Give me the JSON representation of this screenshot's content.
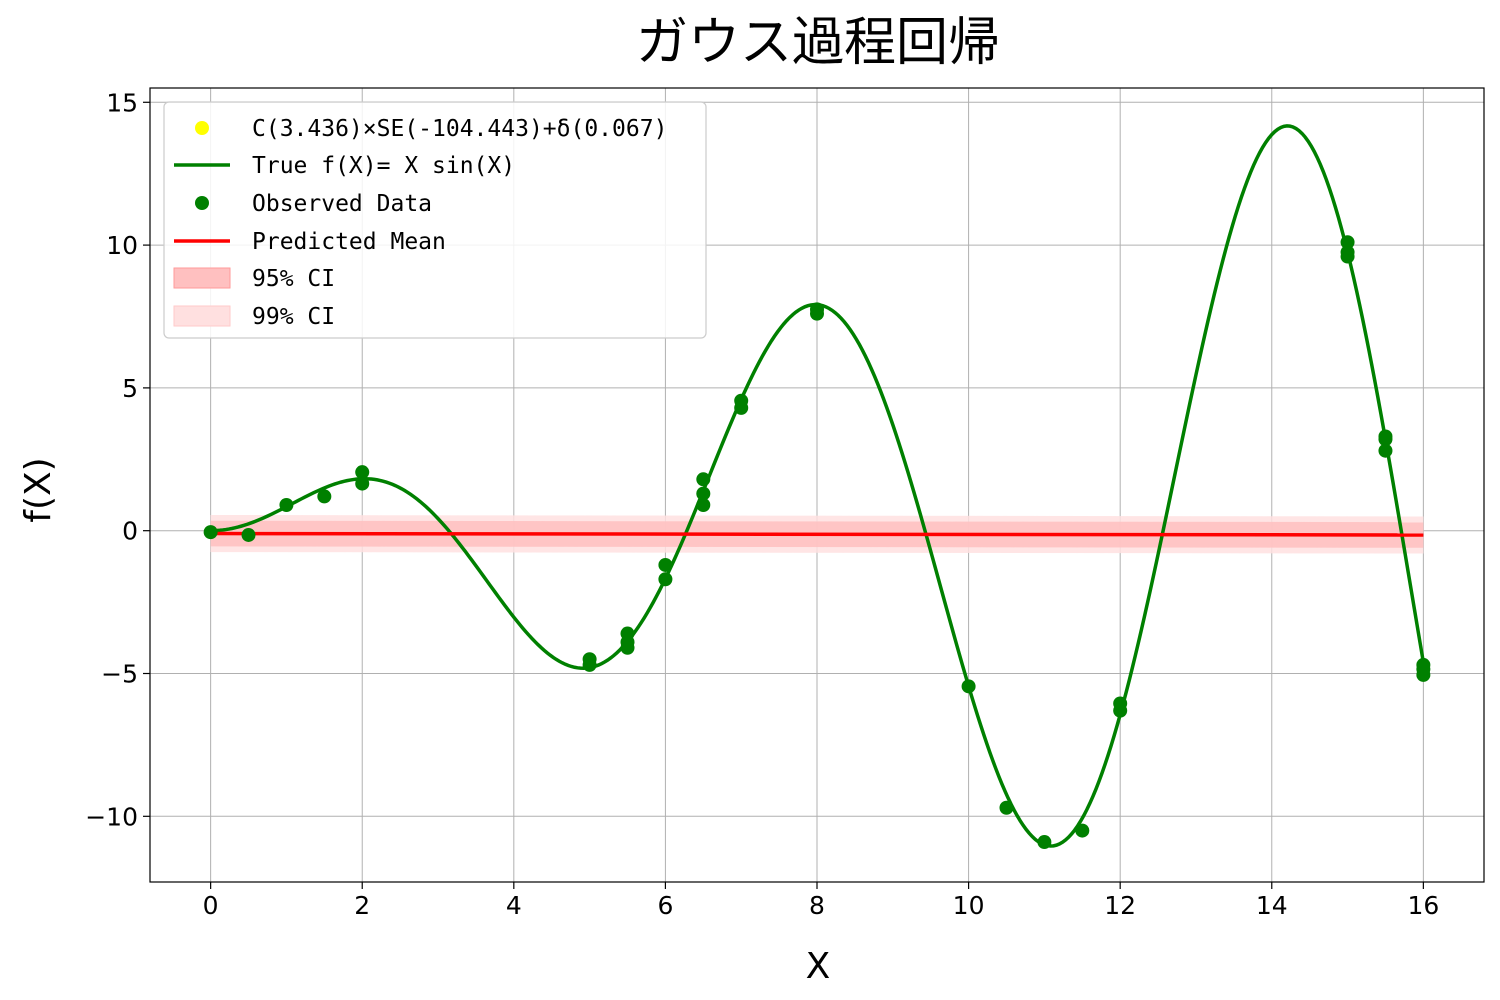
{
  "chart_data": {
    "type": "line",
    "title": "ガウス過程回帰",
    "xlabel": "X",
    "ylabel": "f(X)",
    "xlim": [
      -0.8,
      16.8
    ],
    "ylim": [
      -12.3,
      15.5
    ],
    "xticks": [
      0,
      2,
      4,
      6,
      8,
      10,
      12,
      14,
      16
    ],
    "yticks": [
      15,
      10,
      5,
      0,
      -5,
      -10
    ],
    "xtick_labels": [
      "0",
      "2",
      "4",
      "6",
      "8",
      "10",
      "12",
      "14",
      "16"
    ],
    "ytick_labels": [
      "15",
      "10",
      "5",
      "0",
      "−5",
      "−10"
    ],
    "grid": true,
    "legend_position": "top-left",
    "colors": {
      "true_function": "#008000",
      "observed": "#008000",
      "kernel_marker": "#ffff00",
      "mean": "#ff0000",
      "ci95": "#ffc0c0",
      "ci99": "#ffe0e0"
    },
    "legend": [
      {
        "key": "kernel",
        "label": "C(3.436)×SE(-104.443)+δ(0.067)",
        "marker": "dot"
      },
      {
        "key": "true",
        "label": "True f(X)= X sin(X)",
        "marker": "line"
      },
      {
        "key": "observed",
        "label": "Observed Data",
        "marker": "dot"
      },
      {
        "key": "mean",
        "label": "Predicted Mean",
        "marker": "line"
      },
      {
        "key": "ci95",
        "label": "95% CI",
        "marker": "patch"
      },
      {
        "key": "ci99",
        "label": "99% CI",
        "marker": "patch"
      }
    ],
    "true_function": {
      "expression": "x*sin(x)",
      "x_range": [
        0,
        16
      ]
    },
    "predicted_mean": {
      "x": [
        0,
        16
      ],
      "y": [
        -0.1,
        -0.15
      ]
    },
    "ci95": {
      "x": [
        0,
        16
      ],
      "lower": [
        -0.55,
        -0.6
      ],
      "upper": [
        0.35,
        0.3
      ]
    },
    "ci99": {
      "x": [
        0,
        16
      ],
      "lower": [
        -0.75,
        -0.8
      ],
      "upper": [
        0.55,
        0.5
      ]
    },
    "observed": [
      {
        "x": 0,
        "y": -0.05
      },
      {
        "x": 0.5,
        "y": -0.15
      },
      {
        "x": 1,
        "y": 0.9
      },
      {
        "x": 1.5,
        "y": 1.2
      },
      {
        "x": 2,
        "y": 2.05
      },
      {
        "x": 2,
        "y": 1.65
      },
      {
        "x": 5,
        "y": -4.5
      },
      {
        "x": 5,
        "y": -4.7
      },
      {
        "x": 5.5,
        "y": -3.6
      },
      {
        "x": 5.5,
        "y": -3.9
      },
      {
        "x": 5.5,
        "y": -4.1
      },
      {
        "x": 6,
        "y": -1.2
      },
      {
        "x": 6,
        "y": -1.7
      },
      {
        "x": 6.5,
        "y": 1.8
      },
      {
        "x": 6.5,
        "y": 1.3
      },
      {
        "x": 6.5,
        "y": 0.9
      },
      {
        "x": 7,
        "y": 4.55
      },
      {
        "x": 7,
        "y": 4.3
      },
      {
        "x": 8,
        "y": 7.75
      },
      {
        "x": 8,
        "y": 7.6
      },
      {
        "x": 10,
        "y": -5.45
      },
      {
        "x": 10.5,
        "y": -9.7
      },
      {
        "x": 11,
        "y": -10.9
      },
      {
        "x": 11.5,
        "y": -10.5
      },
      {
        "x": 12,
        "y": -6.05
      },
      {
        "x": 12,
        "y": -6.3
      },
      {
        "x": 15,
        "y": 10.1
      },
      {
        "x": 15,
        "y": 9.75
      },
      {
        "x": 15,
        "y": 9.6
      },
      {
        "x": 15.5,
        "y": 3.3
      },
      {
        "x": 15.5,
        "y": 3.2
      },
      {
        "x": 15.5,
        "y": 2.8
      },
      {
        "x": 16,
        "y": -4.7
      },
      {
        "x": 16,
        "y": -4.85
      },
      {
        "x": 16,
        "y": -5.05
      }
    ]
  }
}
